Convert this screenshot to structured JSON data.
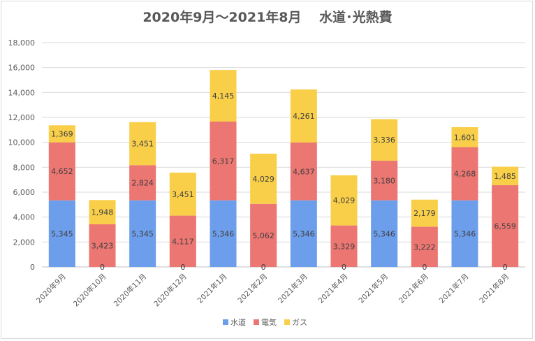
{
  "chart_data": {
    "type": "bar",
    "stacked": true,
    "title": "2020年9月～2021年8月　 水道･光熱費",
    "categories": [
      "2020年9月",
      "2020年10月",
      "2020年11月",
      "2020年12月",
      "2021年1月",
      "2021年2月",
      "2021年3月",
      "2021年4月",
      "2021年5月",
      "2021年6月",
      "2021年7月",
      "2021年8月"
    ],
    "series": [
      {
        "name": "水道",
        "color": "#6d9eeb",
        "values": [
          5345,
          0,
          5345,
          0,
          5346,
          0,
          5346,
          0,
          5346,
          0,
          5346,
          0
        ]
      },
      {
        "name": "電気",
        "color": "#ec7672",
        "values": [
          4652,
          3423,
          2824,
          4117,
          6317,
          5062,
          4637,
          3329,
          3180,
          3222,
          4268,
          6559
        ]
      },
      {
        "name": "ガス",
        "color": "#f9cf4a",
        "values": [
          1369,
          1948,
          3451,
          3451,
          4145,
          4029,
          4261,
          4029,
          3336,
          2179,
          1601,
          1485
        ]
      }
    ],
    "yticks": [
      "0",
      "2,000",
      "4,000",
      "6,000",
      "8,000",
      "10,000",
      "12,000",
      "14,000",
      "16,000",
      "18,000"
    ],
    "ylim": [
      0,
      18000
    ],
    "grid": true,
    "legend_position": "bottom"
  }
}
